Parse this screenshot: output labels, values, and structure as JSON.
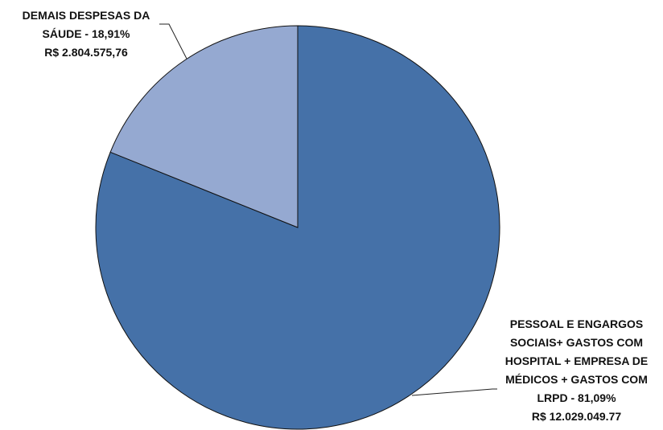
{
  "chart_data": {
    "type": "pie",
    "categories": [
      "PESSOAL E ENGARGOS SOCIAIS+ GASTOS COM HOSPITAL + EMPRESA DE MÉDICOS + GASTOS COM LRPD -",
      "DEMAIS DESPESAS DA SÁUDE -"
    ],
    "values": [
      81.09,
      18.91
    ],
    "value_labels": [
      "81,09%",
      "18,91%"
    ],
    "amount_labels": [
      "R$ 12.029.049.77",
      "R$ 2.804.575,76"
    ],
    "colors": [
      "#4571a8",
      "#95a9d1"
    ]
  }
}
